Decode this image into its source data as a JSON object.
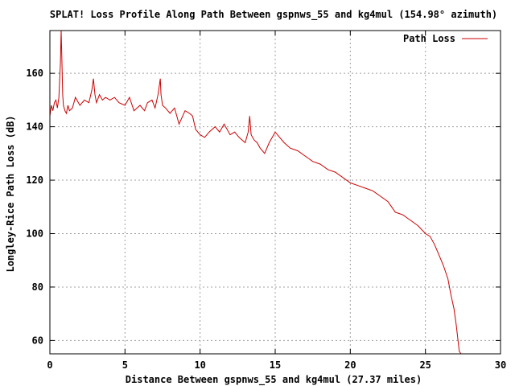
{
  "chart_data": {
    "type": "line",
    "title": "SPLAT! Loss Profile Along Path Between gspnws_55 and kg4mul (154.98° azimuth)",
    "xlabel": "Distance Between gspnws_55 and kg4mul (27.37 miles)",
    "ylabel": "Longley-Rice Path Loss (dB)",
    "xlim": [
      0,
      30
    ],
    "ylim": [
      55,
      176
    ],
    "x_ticks": [
      0,
      5,
      10,
      15,
      20,
      25,
      30
    ],
    "y_ticks": [
      60,
      80,
      100,
      120,
      140,
      160
    ],
    "x_tick_labels": [
      "0",
      "5",
      "10",
      "15",
      "20",
      "25",
      "30"
    ],
    "y_tick_labels": [
      "60",
      "80",
      "100",
      "120",
      "140",
      "160"
    ],
    "grid": true,
    "legend_position": "top-right",
    "colors": {
      "series": "#cc0000",
      "grid": "#a0a0a0",
      "axis": "#000000"
    },
    "series": [
      {
        "name": "Path Loss",
        "x": [
          0.0,
          0.1,
          0.2,
          0.3,
          0.4,
          0.5,
          0.6,
          0.7,
          0.75,
          0.8,
          0.85,
          0.9,
          1.0,
          1.1,
          1.2,
          1.3,
          1.5,
          1.7,
          2.0,
          2.3,
          2.6,
          2.8,
          2.9,
          3.0,
          3.1,
          3.3,
          3.5,
          3.7,
          4.0,
          4.3,
          4.6,
          5.0,
          5.3,
          5.6,
          6.0,
          6.3,
          6.5,
          6.8,
          7.0,
          7.2,
          7.35,
          7.4,
          7.5,
          7.7,
          8.0,
          8.3,
          8.6,
          9.0,
          9.3,
          9.5,
          9.7,
          10.0,
          10.3,
          10.6,
          11.0,
          11.3,
          11.6,
          12.0,
          12.3,
          12.6,
          13.0,
          13.2,
          13.3,
          13.4,
          13.6,
          13.8,
          14.0,
          14.3,
          14.6,
          15.0,
          15.3,
          15.6,
          16.0,
          16.5,
          17.0,
          17.5,
          18.0,
          18.5,
          19.0,
          19.5,
          20.0,
          20.5,
          21.0,
          21.5,
          22.0,
          22.5,
          23.0,
          23.5,
          24.0,
          24.5,
          25.0,
          25.3,
          25.6,
          25.9,
          26.2,
          26.5,
          26.7,
          26.9,
          27.05,
          27.15,
          27.25,
          27.37
        ],
        "y": [
          144,
          148,
          146,
          149,
          150,
          147,
          151,
          164,
          178,
          165,
          152,
          148,
          146,
          145,
          148,
          146,
          147,
          151,
          148,
          150,
          149,
          154,
          158,
          152,
          149,
          152,
          150,
          151,
          150,
          151,
          149,
          148,
          151,
          146,
          148,
          146,
          149,
          150,
          147,
          152,
          158,
          152,
          148,
          147,
          145,
          147,
          141,
          146,
          145,
          144,
          139,
          137,
          136,
          138,
          140,
          138,
          141,
          137,
          138,
          136,
          134,
          138,
          144,
          137,
          135,
          134,
          132,
          130,
          134,
          138,
          136,
          134,
          132,
          131,
          129,
          127,
          126,
          124,
          123,
          121,
          119,
          118,
          117,
          116,
          114,
          112,
          108,
          107,
          105,
          103,
          100,
          99,
          96,
          92,
          88,
          83,
          77,
          72,
          66,
          61,
          56,
          55
        ]
      }
    ]
  }
}
